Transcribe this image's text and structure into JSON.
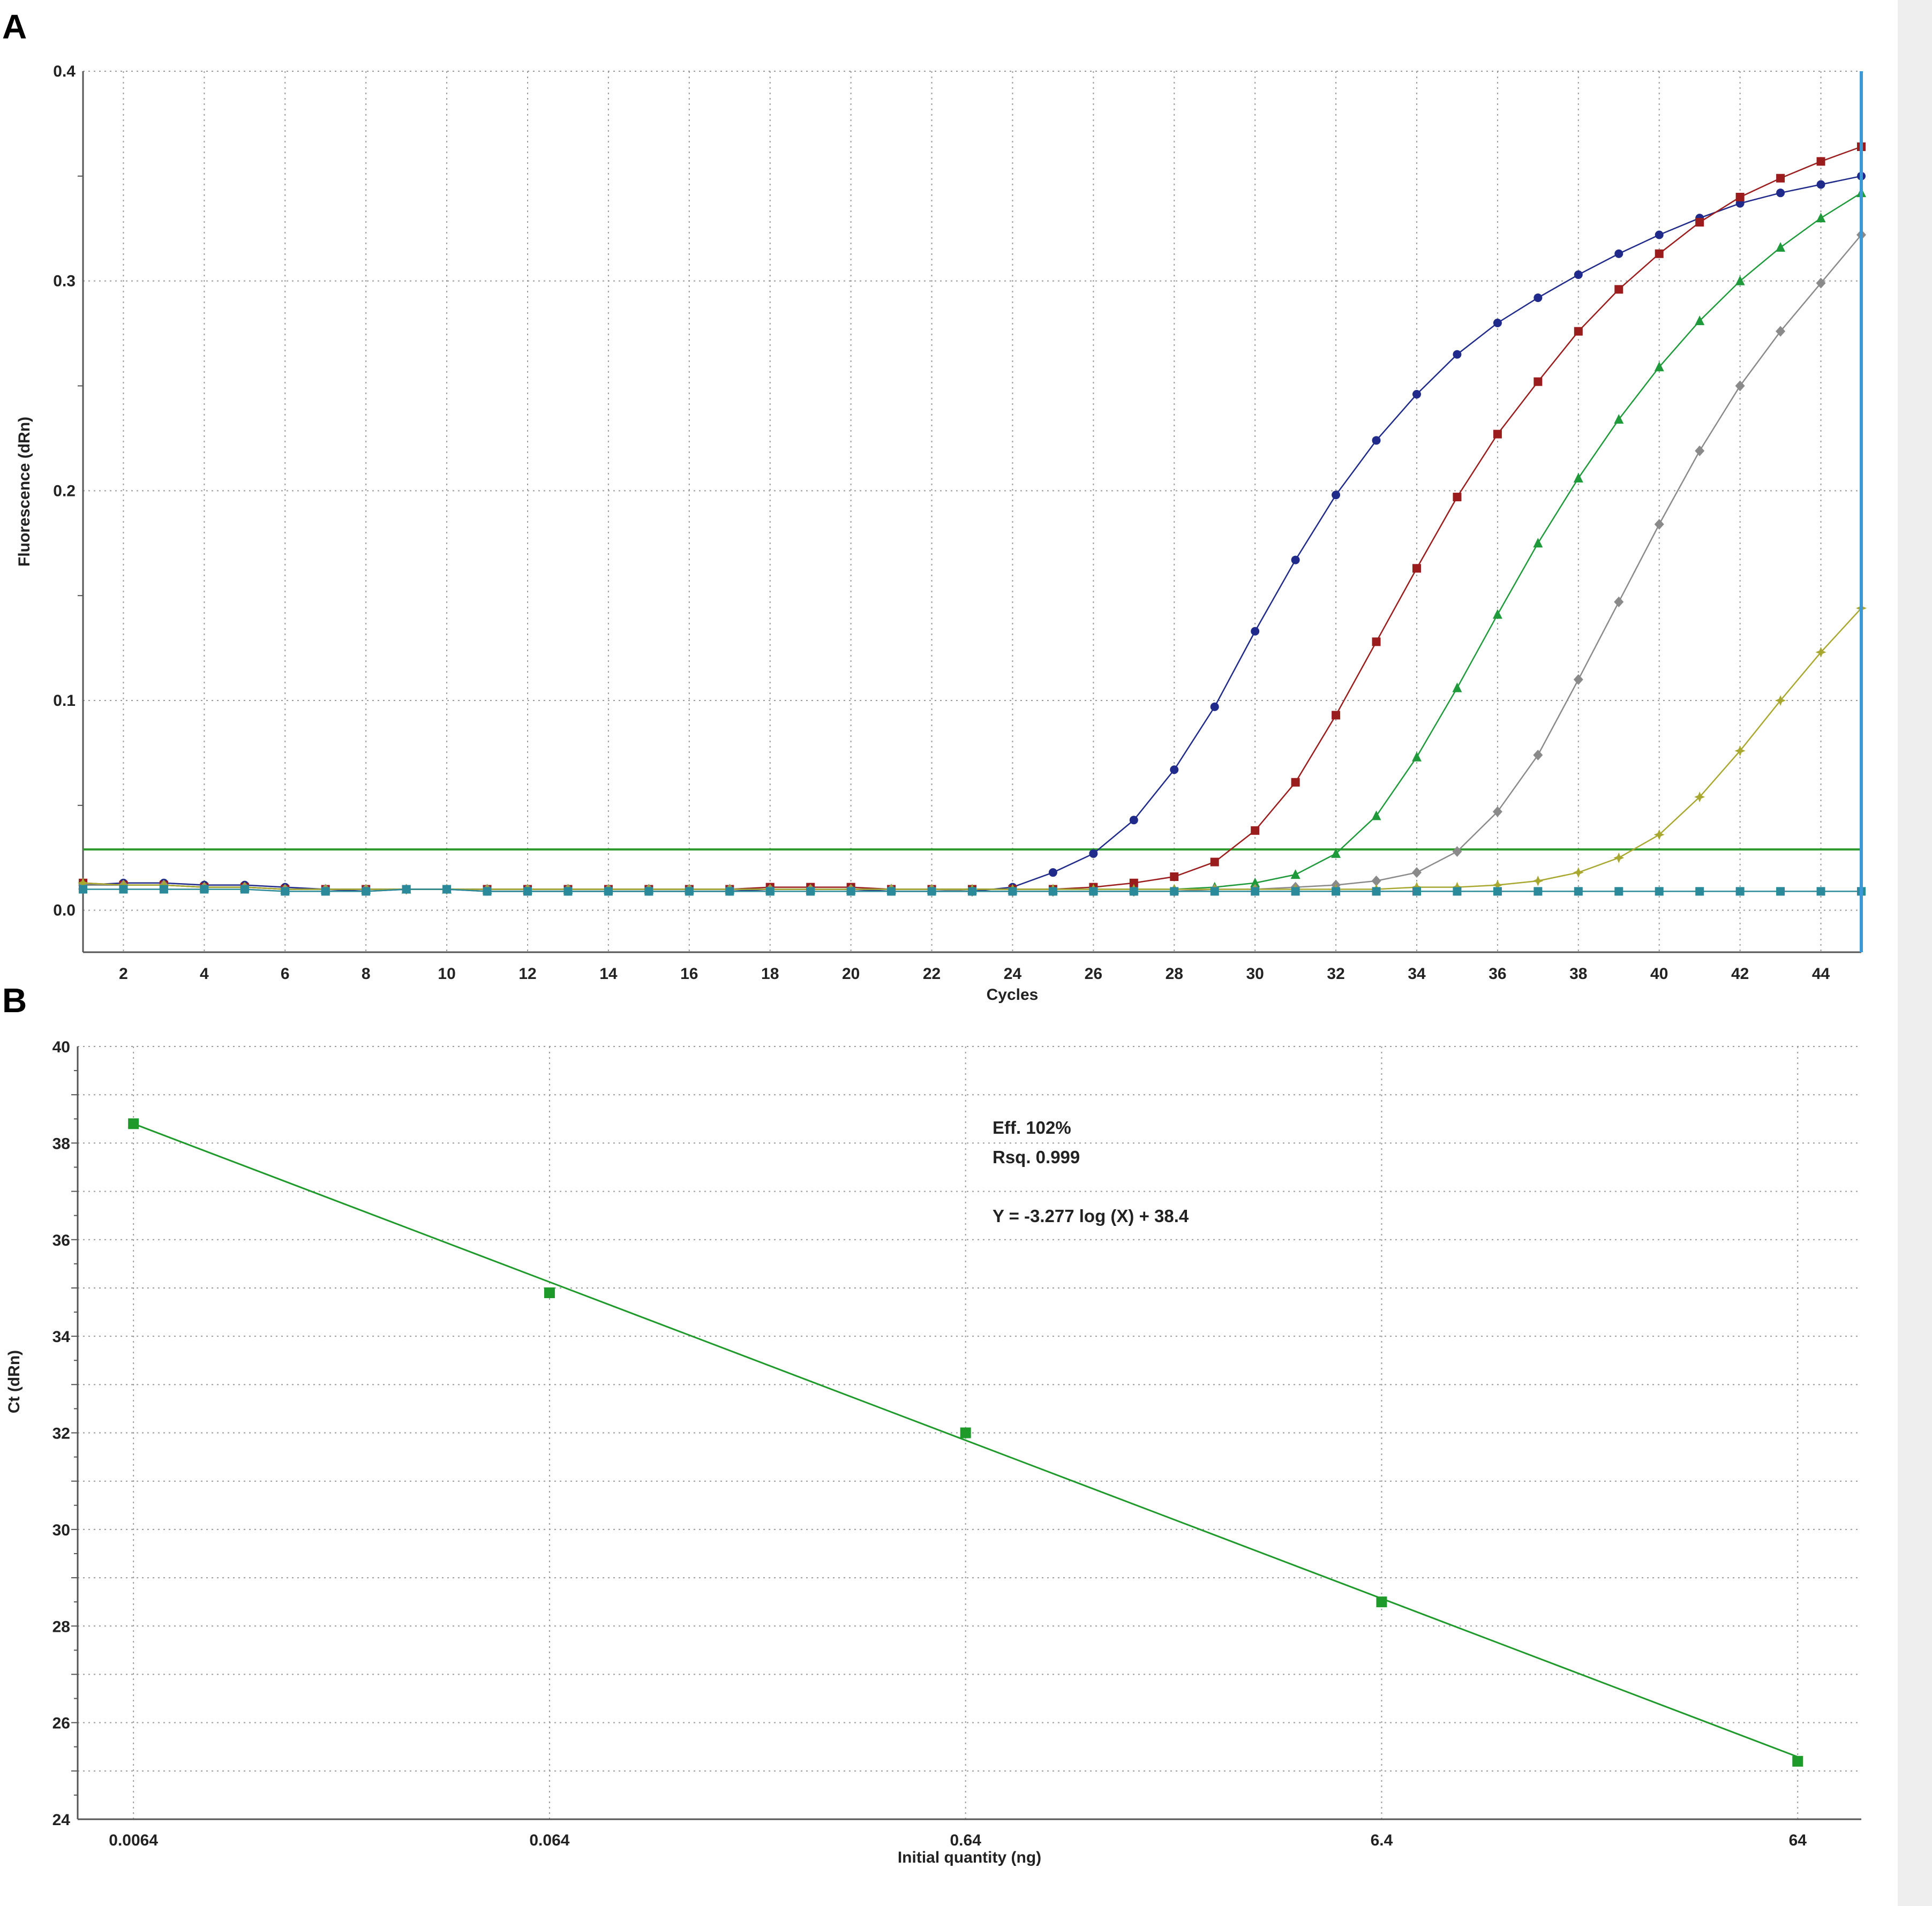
{
  "panels": {
    "a": {
      "letter": "A",
      "ylabel": "Fluorescence (dRn)",
      "xlabel": "Cycles",
      "threshold_color": "#2e9a2e",
      "marker_line_color": "#3a9ad9"
    },
    "b": {
      "letter": "B",
      "ylabel": "Ct (dRn)",
      "xlabel": "Initial quantity (ng)",
      "annotation": {
        "eff": "Eff. 102%",
        "rsq": "Rsq. 0.999",
        "equation": "Y = -3.277 log (X) + 38.4"
      }
    }
  },
  "chart_data": [
    {
      "type": "line",
      "panel": "A",
      "xlabel": "Cycles",
      "ylabel": "Fluorescence (dRn)",
      "xlim": [
        1,
        45
      ],
      "ylim": [
        -0.02,
        0.4
      ],
      "x_ticks": [
        "2",
        "4",
        "6",
        "8",
        "10",
        "12",
        "14",
        "16",
        "18",
        "20",
        "22",
        "24",
        "26",
        "28",
        "30",
        "32",
        "34",
        "36",
        "38",
        "40",
        "42",
        "44"
      ],
      "y_ticks": [
        "0.0",
        "0.1",
        "0.2",
        "0.3",
        "0.4"
      ],
      "threshold": 0.029,
      "grid": true,
      "series": [
        {
          "color": "#1f2a8a",
          "marker": "circle",
          "values": [
            0.012,
            0.013,
            0.013,
            0.012,
            0.012,
            0.011,
            0.01,
            0.009,
            0.01,
            0.01,
            0.009,
            0.009,
            0.009,
            0.009,
            0.009,
            0.009,
            0.009,
            0.01,
            0.01,
            0.01,
            0.009,
            0.009,
            0.009,
            0.011,
            0.018,
            0.027,
            0.043,
            0.067,
            0.097,
            0.133,
            0.167,
            0.198,
            0.224,
            0.246,
            0.265,
            0.28,
            0.292,
            0.303,
            0.313,
            0.322,
            0.33,
            0.337,
            0.342,
            0.346,
            0.35
          ]
        },
        {
          "color": "#9b1c1c",
          "marker": "square",
          "values": [
            0.013,
            0.012,
            0.012,
            0.011,
            0.011,
            0.01,
            0.01,
            0.01,
            0.01,
            0.01,
            0.01,
            0.01,
            0.01,
            0.01,
            0.01,
            0.01,
            0.01,
            0.011,
            0.011,
            0.011,
            0.01,
            0.01,
            0.01,
            0.01,
            0.01,
            0.011,
            0.013,
            0.016,
            0.023,
            0.038,
            0.061,
            0.093,
            0.128,
            0.163,
            0.197,
            0.227,
            0.252,
            0.276,
            0.296,
            0.313,
            0.328,
            0.34,
            0.349,
            0.357,
            0.364
          ]
        },
        {
          "color": "#1e9a3a",
          "marker": "triangle",
          "values": [
            0.012,
            0.012,
            0.012,
            0.011,
            0.011,
            0.01,
            0.01,
            0.01,
            0.01,
            0.01,
            0.01,
            0.01,
            0.01,
            0.01,
            0.01,
            0.01,
            0.01,
            0.01,
            0.01,
            0.01,
            0.01,
            0.01,
            0.01,
            0.01,
            0.01,
            0.01,
            0.01,
            0.01,
            0.011,
            0.013,
            0.017,
            0.027,
            0.045,
            0.073,
            0.106,
            0.141,
            0.175,
            0.206,
            0.234,
            0.259,
            0.281,
            0.3,
            0.316,
            0.33,
            0.342
          ]
        },
        {
          "color": "#8a8a8a",
          "marker": "diamond",
          "values": [
            0.012,
            0.012,
            0.012,
            0.011,
            0.011,
            0.01,
            0.01,
            0.01,
            0.01,
            0.01,
            0.01,
            0.01,
            0.01,
            0.01,
            0.01,
            0.01,
            0.01,
            0.01,
            0.01,
            0.01,
            0.01,
            0.01,
            0.009,
            0.009,
            0.009,
            0.009,
            0.009,
            0.009,
            0.01,
            0.01,
            0.011,
            0.012,
            0.014,
            0.018,
            0.028,
            0.047,
            0.074,
            0.11,
            0.147,
            0.184,
            0.219,
            0.25,
            0.276,
            0.299,
            0.322
          ]
        },
        {
          "color": "#a8a830",
          "marker": "star",
          "values": [
            0.013,
            0.012,
            0.012,
            0.011,
            0.011,
            0.01,
            0.01,
            0.01,
            0.01,
            0.01,
            0.01,
            0.01,
            0.01,
            0.01,
            0.01,
            0.01,
            0.01,
            0.01,
            0.01,
            0.01,
            0.01,
            0.01,
            0.01,
            0.01,
            0.01,
            0.01,
            0.01,
            0.01,
            0.01,
            0.01,
            0.01,
            0.01,
            0.01,
            0.011,
            0.011,
            0.012,
            0.014,
            0.018,
            0.025,
            0.036,
            0.054,
            0.076,
            0.1,
            0.123,
            0.144
          ]
        },
        {
          "color": "#2a8a9a",
          "marker": "square",
          "values": [
            0.01,
            0.01,
            0.01,
            0.01,
            0.01,
            0.009,
            0.009,
            0.009,
            0.01,
            0.01,
            0.009,
            0.009,
            0.009,
            0.009,
            0.009,
            0.009,
            0.009,
            0.009,
            0.009,
            0.009,
            0.009,
            0.009,
            0.009,
            0.009,
            0.009,
            0.009,
            0.009,
            0.009,
            0.009,
            0.009,
            0.009,
            0.009,
            0.009,
            0.009,
            0.009,
            0.009,
            0.009,
            0.009,
            0.009,
            0.009,
            0.009,
            0.009,
            0.009,
            0.009,
            0.009
          ]
        }
      ]
    },
    {
      "type": "scatter",
      "panel": "B",
      "xlabel": "Initial quantity (ng)",
      "ylabel": "Ct (dRn)",
      "x_scale": "log",
      "xlim": [
        0.0047,
        91
      ],
      "ylim": [
        24,
        40
      ],
      "x_ticks": [
        {
          "value": 0.0064,
          "label": "0.0064"
        },
        {
          "value": 0.064,
          "label": "0.064"
        },
        {
          "value": 0.64,
          "label": "0.64"
        },
        {
          "value": 6.4,
          "label": "6.4"
        },
        {
          "value": 64,
          "label": "64"
        }
      ],
      "y_ticks": [
        "24",
        "26",
        "28",
        "30",
        "32",
        "34",
        "36",
        "38",
        "40"
      ],
      "grid": true,
      "points": [
        {
          "x": 0.0064,
          "y": 38.4
        },
        {
          "x": 0.064,
          "y": 34.9
        },
        {
          "x": 0.64,
          "y": 32.0
        },
        {
          "x": 6.4,
          "y": 28.5
        },
        {
          "x": 64,
          "y": 25.2
        }
      ],
      "fit": {
        "slope": -3.277,
        "intercept": 38.4,
        "x_from": 0.0064,
        "x_to": 64
      },
      "color": "#1e9a2a"
    }
  ]
}
